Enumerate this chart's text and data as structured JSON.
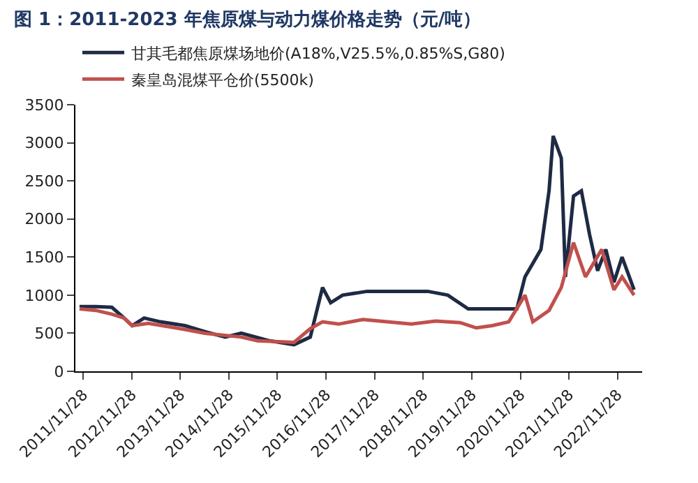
{
  "chart_data": {
    "type": "line",
    "title": "图 1：2011-2023 年焦原煤与动力煤价格走势（元/吨）",
    "series": [
      {
        "name": "甘其毛都焦原煤场地价(A18%,V25.5%,0.85%S,G80)",
        "color": "#1f2a44",
        "x": [
          "2011-11",
          "2012-03",
          "2012-07",
          "2012-10",
          "2012-12",
          "2013-03",
          "2013-07",
          "2014-01",
          "2014-06",
          "2014-11",
          "2015-03",
          "2015-10",
          "2016-04",
          "2016-08",
          "2016-11",
          "2017-01",
          "2017-04",
          "2017-10",
          "2018-06",
          "2019-01",
          "2019-06",
          "2019-11",
          "2020-05",
          "2020-11",
          "2021-01",
          "2021-05",
          "2021-07",
          "2021-08",
          "2021-10",
          "2021-11",
          "2022-01",
          "2022-03",
          "2022-05",
          "2022-07",
          "2022-09",
          "2022-11",
          "2023-01",
          "2023-04"
        ],
        "values": [
          850,
          850,
          840,
          700,
          600,
          700,
          650,
          600,
          520,
          450,
          500,
          400,
          350,
          450,
          1100,
          900,
          1000,
          1050,
          1050,
          1050,
          1000,
          820,
          820,
          820,
          1240,
          1600,
          2370,
          3090,
          2800,
          1240,
          2300,
          2370,
          1800,
          1320,
          1600,
          1170,
          1500,
          1070
        ]
      },
      {
        "name": "秦皇岛混煤平仓价(5500k)",
        "color": "#c0504d",
        "x": [
          "2011-11",
          "2012-03",
          "2012-07",
          "2012-10",
          "2012-12",
          "2013-04",
          "2014-01",
          "2014-06",
          "2015-03",
          "2015-07",
          "2016-04",
          "2016-08",
          "2016-11",
          "2017-03",
          "2017-09",
          "2018-03",
          "2018-09",
          "2019-03",
          "2019-09",
          "2020-01",
          "2020-05",
          "2020-09",
          "2021-01",
          "2021-03",
          "2021-07",
          "2021-10",
          "2022-01",
          "2022-04",
          "2022-08",
          "2022-11",
          "2023-01",
          "2023-04"
        ],
        "values": [
          820,
          800,
          750,
          700,
          600,
          630,
          550,
          500,
          450,
          400,
          380,
          560,
          650,
          620,
          680,
          650,
          620,
          660,
          640,
          570,
          600,
          650,
          1000,
          650,
          800,
          1100,
          1690,
          1240,
          1600,
          1070,
          1240,
          1000
        ]
      }
    ],
    "xlim": [
      "2011-10",
      "2023-06"
    ],
    "xticks": [
      {
        "value": "2011-11-28",
        "label": "2011/11/28"
      },
      {
        "value": "2012-11-28",
        "label": "2012/11/28"
      },
      {
        "value": "2013-11-28",
        "label": "2013/11/28"
      },
      {
        "value": "2014-11-28",
        "label": "2014/11/28"
      },
      {
        "value": "2015-11-28",
        "label": "2015/11/28"
      },
      {
        "value": "2016-11-28",
        "label": "2016/11/28"
      },
      {
        "value": "2017-11-28",
        "label": "2017/11/28"
      },
      {
        "value": "2018-11-28",
        "label": "2018/11/28"
      },
      {
        "value": "2019-11-28",
        "label": "2019/11/28"
      },
      {
        "value": "2020-11-28",
        "label": "2020/11/28"
      },
      {
        "value": "2021-11-28",
        "label": "2021/11/28"
      },
      {
        "value": "2022-11-28",
        "label": "2022/11/28"
      }
    ],
    "ylim": [
      0,
      3500
    ],
    "yticks": [
      0,
      500,
      1000,
      1500,
      2000,
      2500,
      3000,
      3500
    ],
    "legend": "top left"
  }
}
